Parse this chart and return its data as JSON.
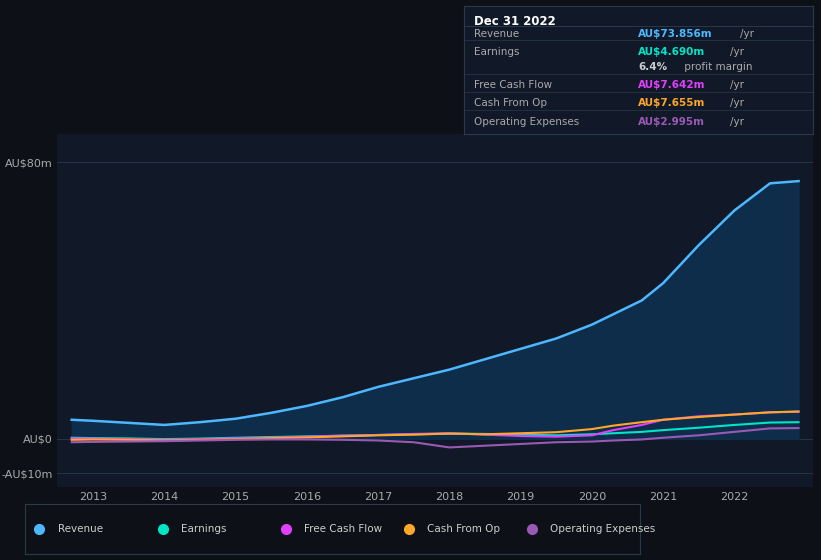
{
  "background_color": "#0d1117",
  "plot_bg_color": "#111827",
  "years": [
    2012.7,
    2013,
    2013.5,
    2014,
    2014.5,
    2015,
    2015.5,
    2016,
    2016.5,
    2017,
    2017.5,
    2018,
    2018.5,
    2019,
    2019.5,
    2020,
    2020.3,
    2020.7,
    2021,
    2021.5,
    2022,
    2022.5,
    2022.9
  ],
  "revenue": [
    5.5,
    5.2,
    4.6,
    4.0,
    4.8,
    5.8,
    7.5,
    9.5,
    12.0,
    15.0,
    17.5,
    20.0,
    23.0,
    26.0,
    29.0,
    33.0,
    36.0,
    40.0,
    45.0,
    56.0,
    66.0,
    73.856,
    74.5
  ],
  "earnings": [
    0.3,
    0.2,
    0.1,
    -0.1,
    0.05,
    0.3,
    0.5,
    0.7,
    0.9,
    1.1,
    1.3,
    1.5,
    1.4,
    1.2,
    1.0,
    1.3,
    1.6,
    2.0,
    2.5,
    3.2,
    4.0,
    4.69,
    4.8
  ],
  "free_cash_flow": [
    0.1,
    0.05,
    -0.1,
    -0.3,
    -0.1,
    0.1,
    0.3,
    0.6,
    0.9,
    1.1,
    1.4,
    1.6,
    1.2,
    0.8,
    0.6,
    1.0,
    2.5,
    4.0,
    5.5,
    6.5,
    7.0,
    7.642,
    7.8
  ],
  "cash_from_op": [
    -0.3,
    -0.2,
    -0.3,
    -0.5,
    -0.3,
    -0.1,
    0.2,
    0.4,
    0.7,
    1.0,
    1.2,
    1.5,
    1.3,
    1.6,
    1.9,
    2.8,
    3.8,
    4.8,
    5.5,
    6.3,
    7.0,
    7.655,
    7.9
  ],
  "op_expenses": [
    -1.0,
    -0.9,
    -0.8,
    -0.7,
    -0.5,
    -0.3,
    -0.2,
    -0.2,
    -0.3,
    -0.5,
    -1.0,
    -2.5,
    -2.0,
    -1.5,
    -1.0,
    -0.8,
    -0.5,
    -0.2,
    0.3,
    1.0,
    2.0,
    2.995,
    3.1
  ],
  "revenue_color": "#4db8ff",
  "earnings_color": "#00e5c8",
  "free_cash_flow_color": "#e040fb",
  "cash_from_op_color": "#ffa726",
  "op_expenses_color": "#9b59b6",
  "fill_revenue_color": "#0d2d4a",
  "ylim_top": 88,
  "ylim_bottom": -14,
  "yticks": [
    -10,
    0,
    80
  ],
  "ytick_labels": [
    "-AU$10m",
    "AU$0",
    "AU$80m"
  ],
  "xticks": [
    2013,
    2014,
    2015,
    2016,
    2017,
    2018,
    2019,
    2020,
    2021,
    2022
  ],
  "info_box": {
    "title": "Dec 31 2022",
    "bg_color": "#111827",
    "border_color": "#2a3a4a",
    "rows": [
      {
        "label": "Revenue",
        "value": "AU$73.856m",
        "unit": "/yr",
        "value_color": "#4db8ff"
      },
      {
        "label": "Earnings",
        "value": "AU$4.690m",
        "unit": "/yr",
        "value_color": "#00e5c8"
      },
      {
        "label": "",
        "value": "6.4%",
        "unit": " profit margin",
        "value_color": "#cccccc"
      },
      {
        "label": "Free Cash Flow",
        "value": "AU$7.642m",
        "unit": "/yr",
        "value_color": "#e040fb"
      },
      {
        "label": "Cash From Op",
        "value": "AU$7.655m",
        "unit": "/yr",
        "value_color": "#ffa726"
      },
      {
        "label": "Operating Expenses",
        "value": "AU$2.995m",
        "unit": "/yr",
        "value_color": "#9b59b6"
      }
    ]
  },
  "legend_items": [
    {
      "label": "Revenue",
      "color": "#4db8ff"
    },
    {
      "label": "Earnings",
      "color": "#00e5c8"
    },
    {
      "label": "Free Cash Flow",
      "color": "#e040fb"
    },
    {
      "label": "Cash From Op",
      "color": "#ffa726"
    },
    {
      "label": "Operating Expenses",
      "color": "#9b59b6"
    }
  ]
}
